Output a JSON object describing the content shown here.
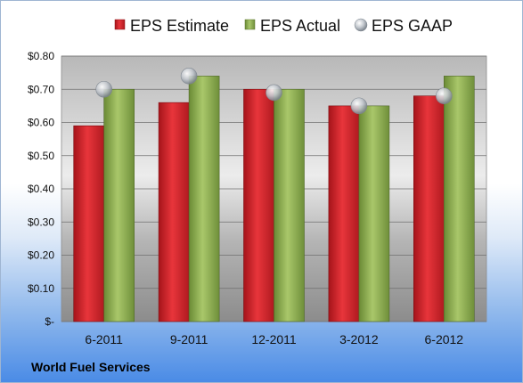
{
  "chart_data": {
    "type": "bar",
    "categories": [
      "6-2011",
      "9-2011",
      "12-2011",
      "3-2012",
      "6-2012"
    ],
    "series": [
      {
        "name": "EPS Estimate",
        "values": [
          0.59,
          0.66,
          0.7,
          0.65,
          0.68
        ],
        "color": "#d8262d"
      },
      {
        "name": "EPS Actual",
        "values": [
          0.7,
          0.74,
          0.7,
          0.65,
          0.74
        ],
        "color": "#8dae4f"
      },
      {
        "name": "EPS GAAP",
        "values": [
          0.7,
          0.74,
          0.69,
          0.65,
          0.68
        ],
        "color": "#b9c0c8",
        "marker": "circle"
      }
    ],
    "ylim": [
      0,
      0.8
    ],
    "yticks": [
      0,
      0.1,
      0.2,
      0.3,
      0.4,
      0.5,
      0.6,
      0.7,
      0.8
    ],
    "ytick_labels": [
      "$-",
      "$0.10",
      "$0.20",
      "$0.30",
      "$0.40",
      "$0.50",
      "$0.60",
      "$0.70",
      "$0.80"
    ],
    "grid": true,
    "legend_position": "top"
  },
  "footer": {
    "company": "World Fuel Services"
  }
}
